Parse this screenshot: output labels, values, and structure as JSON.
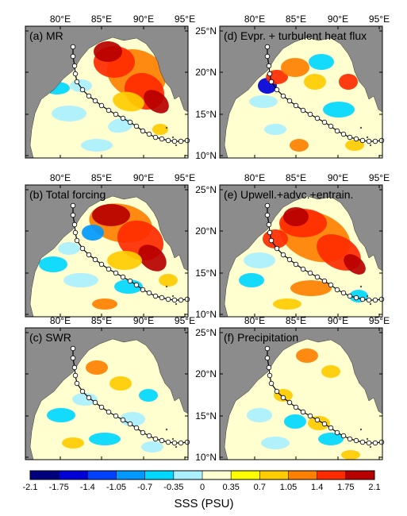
{
  "figure": {
    "panels": [
      {
        "label": "(a) MR"
      },
      {
        "label": "(d) Evpr. + turbulent heat flux"
      },
      {
        "label": "(b) Total forcing"
      },
      {
        "label": "(e) Upwell.+advc.+entrain."
      },
      {
        "label": "(c) SWR"
      },
      {
        "label": "(f) Precipitation"
      }
    ],
    "lon_ticks": [
      "80°E",
      "85°E",
      "90°E",
      "95°E"
    ],
    "lat_ticks": [
      "25°N",
      "20°N",
      "15°N",
      "10°N"
    ],
    "colorbar": {
      "title": "SSS (PSU)",
      "tick_labels": [
        "-2.1",
        "-1.75",
        "-1.4",
        "-1.05",
        "-0.7",
        "-0.35",
        "0",
        "0.35",
        "0.7",
        "1.05",
        "1.4",
        "1.75",
        "2.1"
      ],
      "colors": [
        "#00007f",
        "#0000d8",
        "#0040ff",
        "#0099ff",
        "#00d8ff",
        "#aaf0ff",
        "#ffffd0",
        "#ffff00",
        "#ffcc00",
        "#ff8000",
        "#ff2a00",
        "#b80000"
      ]
    },
    "land_color": "#8c8c8c",
    "track_color": "#ffffff"
  }
}
